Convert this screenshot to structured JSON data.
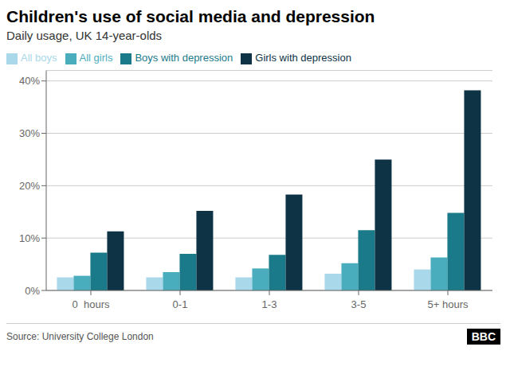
{
  "chart_data": {
    "type": "bar",
    "title": "Children's use of social media and depression",
    "subtitle": "Daily usage, UK 14-year-olds",
    "annotations": [
      "Source: University College London",
      "BBC"
    ],
    "categories": [
      "0  hours",
      "0-1",
      "1-3",
      "3-5",
      "5+ hours"
    ],
    "series": [
      {
        "name": "All boys",
        "color": "#a8d8ea",
        "values": [
          2.5,
          2.5,
          2.5,
          3.2,
          4.0
        ]
      },
      {
        "name": "All girls",
        "color": "#4aadbe",
        "values": [
          2.8,
          3.5,
          4.2,
          5.2,
          6.3
        ]
      },
      {
        "name": "Boys with depression",
        "color": "#1a7a8a",
        "values": [
          7.2,
          7.0,
          6.8,
          11.5,
          14.8
        ]
      },
      {
        "name": "Girls with depression",
        "color": "#0d3345",
        "values": [
          11.3,
          15.2,
          18.3,
          25.0,
          38.2
        ]
      }
    ],
    "ylim": [
      0,
      42
    ],
    "yticks": [
      {
        "value": 0,
        "label": "0%"
      },
      {
        "value": 10,
        "label": "10%"
      },
      {
        "value": 20,
        "label": "20%"
      },
      {
        "value": 30,
        "label": "30%"
      },
      {
        "value": 40,
        "label": "40%"
      }
    ],
    "grid": true,
    "legend": "upper left"
  }
}
